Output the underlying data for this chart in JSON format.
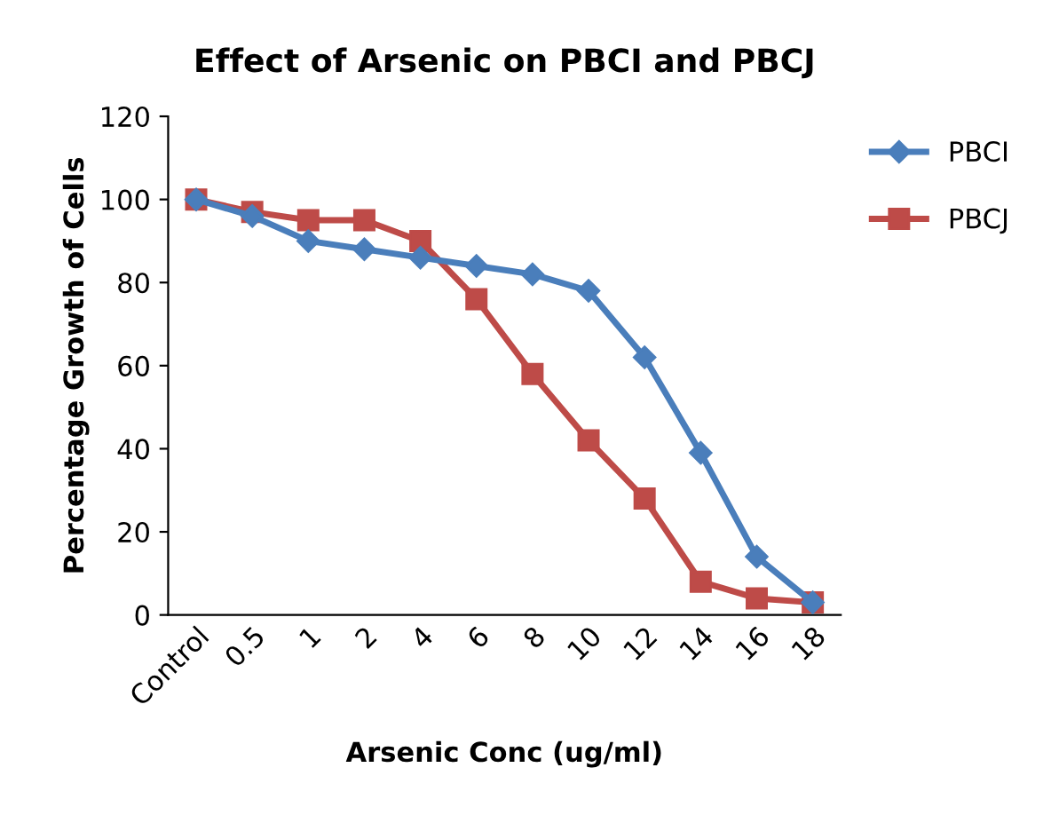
{
  "chart_data": {
    "type": "line",
    "title": "Effect of Arsenic on PBCI and PBCJ",
    "xlabel": "Arsenic Conc (ug/ml)",
    "ylabel": "Percentage Growth of Cells",
    "categories": [
      "Control",
      "0.5",
      "1",
      "2",
      "4",
      "6",
      "8",
      "10",
      "12",
      "14",
      "16",
      "18"
    ],
    "series": [
      {
        "name": "PBCI",
        "color": "#4a7ebb",
        "marker": "diamond",
        "values": [
          100,
          96,
          90,
          88,
          86,
          84,
          82,
          78,
          62,
          39,
          14,
          3
        ]
      },
      {
        "name": "PBCJ",
        "color": "#be4b48",
        "marker": "square",
        "values": [
          100,
          97,
          95,
          95,
          90,
          76,
          58,
          42,
          28,
          8,
          4,
          3
        ]
      }
    ],
    "ylim": [
      0,
      120
    ],
    "yticks": [
      0,
      20,
      40,
      60,
      80,
      100,
      120
    ],
    "grid": false,
    "legend": "top right",
    "line_style": "solid"
  }
}
